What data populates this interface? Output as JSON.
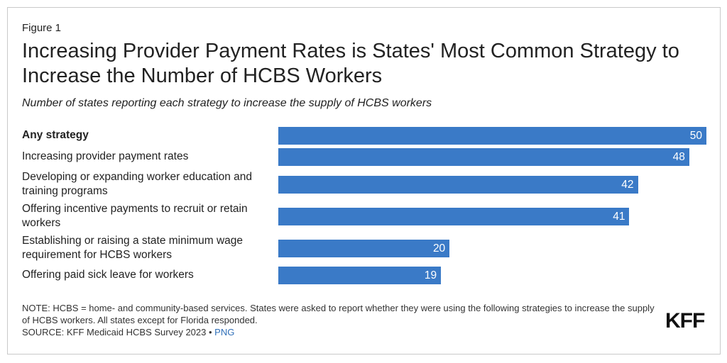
{
  "figure_label": "Figure 1",
  "title": "Increasing Provider Payment Rates is States' Most Common Strategy to Increase the Number of HCBS Workers",
  "subtitle": "Number of states reporting each strategy to increase the supply of HCBS workers",
  "note": "NOTE: HCBS = home- and community-based services. States were asked to report whether they were using the following strategies to increase the supply of HCBS workers. All states except for Florida responded.",
  "source": {
    "text": "SOURCE: KFF Medicaid HCBS Survey 2023 •",
    "link": "PNG"
  },
  "logo": "KFF",
  "colors": {
    "bar": "#3a7ac7",
    "link": "#2f6fb8"
  },
  "chart_data": {
    "type": "bar",
    "orientation": "horizontal",
    "title": "Increasing Provider Payment Rates is States' Most Common Strategy to Increase the Number of HCBS Workers",
    "subtitle": "Number of states reporting each strategy to increase the supply of HCBS workers",
    "categories": [
      "Any strategy",
      "Increasing provider payment rates",
      "Developing or expanding worker education and training programs",
      "Offering incentive payments to recruit or retain workers",
      "Establishing or raising a state minimum wage requirement for HCBS workers",
      "Offering paid sick leave for workers"
    ],
    "values": [
      50,
      48,
      42,
      41,
      20,
      19
    ],
    "xlim": [
      0,
      50
    ],
    "grid": false,
    "data_labels": true
  }
}
